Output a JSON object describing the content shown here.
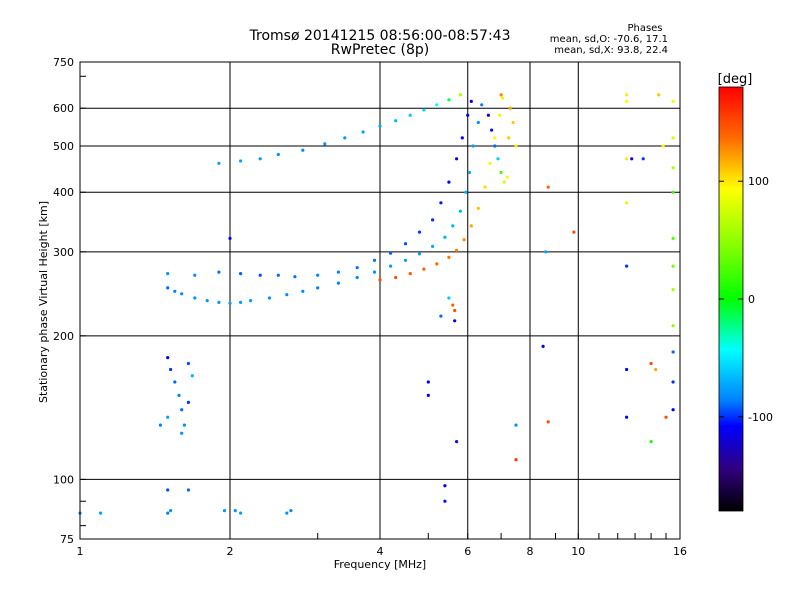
{
  "chart_data": {
    "type": "scatter",
    "title": "Tromsø 20141215 08:56:00-08:57:43",
    "subtitle": "RwPretec (8p)",
    "phases": {
      "heading": "Phases",
      "line1": "mean, sd,O: -70.6, 17.1",
      "line2": "mean, sd,X:  93.8, 22.4"
    },
    "xlabel": "Frequency [MHz]",
    "ylabel": "Stationary phase Virtual Height [km]",
    "x_scale": "log",
    "y_scale": "log",
    "xlim": [
      1,
      16
    ],
    "ylim": [
      75,
      750
    ],
    "x_ticks": [
      1,
      2,
      4,
      6,
      8,
      10,
      16
    ],
    "x_tick_labels": [
      "1",
      "2",
      "4",
      "6",
      "8",
      "10",
      "16"
    ],
    "y_ticks": [
      75,
      100,
      200,
      300,
      400,
      500,
      600,
      750
    ],
    "y_tick_labels": [
      "75",
      "100",
      "200",
      "300",
      "400",
      "500",
      "600",
      "750"
    ],
    "grid": true,
    "colorbar": {
      "label": "[deg]",
      "range": [
        -180,
        180
      ],
      "ticks": [
        100,
        0,
        -100
      ],
      "tick_labels": [
        "100",
        "0",
        "-100"
      ]
    },
    "series": [
      {
        "points": [
          [
            1.5,
            252,
            -90
          ],
          [
            1.55,
            248,
            -85
          ],
          [
            1.6,
            245,
            -82
          ],
          [
            1.7,
            240,
            -80
          ],
          [
            1.8,
            237,
            -78
          ],
          [
            1.9,
            235,
            -77
          ],
          [
            2.0,
            234,
            -76
          ],
          [
            2.1,
            235,
            -76
          ],
          [
            2.2,
            237,
            -77
          ],
          [
            2.4,
            240,
            -80
          ],
          [
            2.6,
            244,
            -82
          ],
          [
            2.8,
            248,
            -84
          ],
          [
            3.0,
            252,
            -85
          ],
          [
            3.3,
            258,
            -85
          ],
          [
            3.6,
            265,
            -82
          ],
          [
            3.9,
            272,
            -80
          ],
          [
            4.2,
            280,
            -78
          ],
          [
            4.5,
            288,
            -76
          ],
          [
            4.8,
            297,
            -74
          ],
          [
            5.1,
            308,
            -72
          ],
          [
            5.4,
            322,
            -70
          ],
          [
            5.6,
            340,
            -68
          ],
          [
            5.8,
            365,
            -68
          ],
          [
            5.95,
            400,
            -70
          ],
          [
            6.05,
            440,
            -72
          ],
          [
            6.15,
            500,
            -75
          ],
          [
            6.3,
            560,
            -80
          ],
          [
            6.4,
            610,
            -85
          ]
        ]
      },
      {
        "points": [
          [
            1.9,
            460,
            -75
          ],
          [
            2.1,
            465,
            -74
          ],
          [
            2.3,
            470,
            -76
          ],
          [
            2.5,
            480,
            -80
          ],
          [
            2.8,
            490,
            -82
          ],
          [
            3.1,
            505,
            -80
          ],
          [
            3.4,
            520,
            -78
          ],
          [
            3.7,
            535,
            -76
          ],
          [
            4.0,
            550,
            -72
          ],
          [
            4.3,
            565,
            -68
          ],
          [
            4.6,
            580,
            -62
          ],
          [
            4.9,
            595,
            -55
          ],
          [
            5.2,
            610,
            -40
          ],
          [
            5.5,
            625,
            -10
          ],
          [
            5.8,
            640,
            60
          ]
        ]
      },
      {
        "points": [
          [
            1.5,
            270,
            -78
          ],
          [
            1.7,
            268,
            -82
          ],
          [
            1.9,
            272,
            -88
          ],
          [
            2.1,
            270,
            -92
          ],
          [
            2.3,
            268,
            -95
          ],
          [
            2.5,
            268,
            -90
          ],
          [
            2.7,
            266,
            -88
          ],
          [
            3.0,
            268,
            -85
          ],
          [
            3.3,
            272,
            -85
          ],
          [
            3.6,
            278,
            -88
          ],
          [
            3.9,
            288,
            -90
          ],
          [
            4.2,
            298,
            -92
          ],
          [
            4.5,
            312,
            -95
          ],
          [
            4.8,
            330,
            -98
          ],
          [
            5.1,
            350,
            -100
          ],
          [
            5.3,
            380,
            -105
          ],
          [
            5.5,
            420,
            -108
          ],
          [
            5.7,
            470,
            -110
          ],
          [
            5.85,
            520,
            -112
          ],
          [
            6.0,
            580,
            -115
          ],
          [
            6.1,
            620,
            -118
          ]
        ]
      },
      {
        "points": [
          [
            4.0,
            262,
            150
          ],
          [
            4.3,
            265,
            148
          ],
          [
            4.6,
            270,
            145
          ],
          [
            4.9,
            276,
            142
          ],
          [
            5.2,
            283,
            138
          ],
          [
            5.5,
            292,
            134
          ],
          [
            5.7,
            302,
            130
          ],
          [
            5.9,
            318,
            126
          ],
          [
            6.1,
            340,
            120
          ],
          [
            6.3,
            370,
            112
          ],
          [
            6.5,
            410,
            104
          ],
          [
            6.65,
            460,
            96
          ],
          [
            6.8,
            520,
            90
          ],
          [
            6.95,
            580,
            86
          ],
          [
            7.05,
            630,
            84
          ]
        ]
      },
      {
        "points": [
          [
            6.6,
            580,
            -120
          ],
          [
            6.7,
            540,
            -105
          ],
          [
            6.8,
            500,
            -90
          ],
          [
            6.9,
            470,
            -60
          ],
          [
            7.0,
            440,
            20
          ],
          [
            7.1,
            420,
            75
          ],
          [
            7.2,
            430,
            95
          ],
          [
            7.25,
            520,
            110
          ],
          [
            7.3,
            600,
            120
          ],
          [
            7.0,
            640,
            130
          ],
          [
            7.4,
            560,
            110
          ],
          [
            7.5,
            500,
            100
          ]
        ]
      },
      {
        "points": [
          [
            1.5,
            180,
            -110
          ],
          [
            1.52,
            170,
            -100
          ],
          [
            1.55,
            160,
            -90
          ],
          [
            1.58,
            150,
            -85
          ],
          [
            1.6,
            140,
            -90
          ],
          [
            1.62,
            130,
            -80
          ],
          [
            1.65,
            175,
            -95
          ],
          [
            1.68,
            165,
            -70
          ],
          [
            1.45,
            130,
            -85
          ],
          [
            1.5,
            135,
            -75
          ],
          [
            1.6,
            125,
            -80
          ],
          [
            1.65,
            145,
            -100
          ]
        ]
      },
      {
        "points": [
          [
            1.0,
            85,
            -80
          ],
          [
            1.1,
            85,
            -75
          ],
          [
            1.5,
            85,
            -85
          ],
          [
            1.52,
            86,
            -80
          ],
          [
            1.95,
            86,
            -78
          ],
          [
            2.05,
            86,
            -80
          ],
          [
            2.1,
            85,
            -75
          ],
          [
            2.6,
            85,
            -80
          ],
          [
            2.65,
            86,
            -82
          ],
          [
            1.5,
            95,
            -95
          ],
          [
            1.65,
            95,
            -90
          ]
        ]
      },
      {
        "points": [
          [
            2.0,
            320,
            -110
          ],
          [
            5.0,
            160,
            -110
          ],
          [
            5.0,
            150,
            -115
          ],
          [
            5.3,
            220,
            -90
          ],
          [
            5.5,
            240,
            -60
          ],
          [
            5.6,
            232,
            140
          ],
          [
            5.65,
            226,
            150
          ],
          [
            5.65,
            215,
            -110
          ],
          [
            5.7,
            120,
            -105
          ],
          [
            5.4,
            97,
            -110
          ],
          [
            5.4,
            90,
            -105
          ],
          [
            7.5,
            130,
            -80
          ],
          [
            7.5,
            110,
            160
          ],
          [
            8.5,
            190,
            -110
          ],
          [
            8.7,
            132,
            150
          ],
          [
            8.6,
            300,
            -75
          ],
          [
            8.7,
            410,
            140
          ],
          [
            9.8,
            330,
            150
          ],
          [
            12.5,
            640,
            100
          ],
          [
            12.5,
            620,
            95
          ],
          [
            12.5,
            470,
            100
          ],
          [
            12.8,
            470,
            -120
          ],
          [
            13.5,
            470,
            -100
          ],
          [
            12.5,
            280,
            -100
          ],
          [
            12.5,
            380,
            100
          ],
          [
            12.5,
            170,
            -110
          ],
          [
            12.5,
            135,
            -110
          ],
          [
            14.0,
            175,
            150
          ],
          [
            14.3,
            170,
            120
          ],
          [
            14.0,
            120,
            10
          ],
          [
            15.0,
            135,
            150
          ],
          [
            15.5,
            520,
            80
          ],
          [
            15.5,
            450,
            60
          ],
          [
            15.5,
            400,
            20
          ],
          [
            15.5,
            320,
            30
          ],
          [
            15.5,
            280,
            40
          ],
          [
            15.5,
            250,
            60
          ],
          [
            15.5,
            210,
            50
          ],
          [
            15.5,
            185,
            -90
          ],
          [
            15.5,
            160,
            -100
          ],
          [
            15.5,
            140,
            -110
          ],
          [
            15.5,
            620,
            90
          ],
          [
            14.5,
            640,
            110
          ],
          [
            14.8,
            500,
            90
          ]
        ]
      }
    ]
  }
}
